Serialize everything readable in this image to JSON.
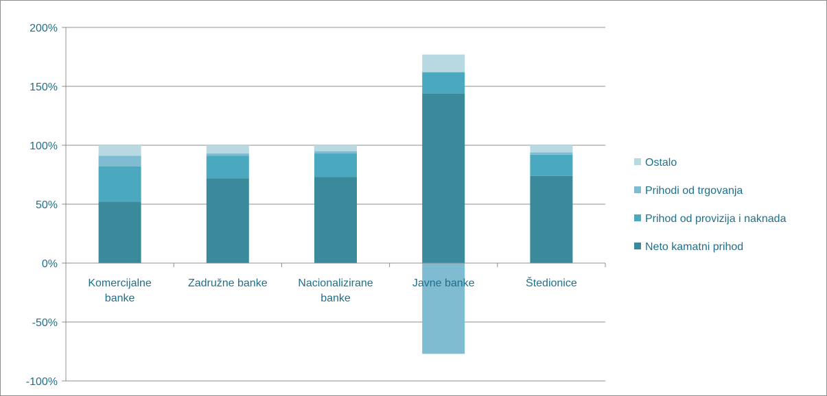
{
  "chart_data": {
    "type": "bar",
    "stacked": true,
    "title": "",
    "xlabel": "",
    "ylabel": "",
    "ylim": [
      -100,
      200
    ],
    "yticks": [
      -100,
      -50,
      0,
      50,
      100,
      150,
      200
    ],
    "ytick_labels": [
      "-100%",
      "-50%",
      "0%",
      "50%",
      "100%",
      "150%",
      "200%"
    ],
    "grid": true,
    "legend_position": "right",
    "categories": [
      [
        "Komercijalne",
        "banke"
      ],
      [
        "Zadružne banke"
      ],
      [
        "Nacionalizirane",
        "banke"
      ],
      [
        "Javne banke"
      ],
      [
        "Štedionice"
      ]
    ],
    "series": [
      {
        "name": "Neto kamatni prihod",
        "color": "#3a8a9c",
        "values": [
          52,
          72,
          73,
          144,
          74
        ]
      },
      {
        "name": "Prihod od provizija i naknada",
        "color": "#4aa8bf",
        "values": [
          30,
          19,
          20,
          18,
          18
        ]
      },
      {
        "name": "Prihodi od trgovanja",
        "color": "#7fbcd1",
        "values": [
          9,
          2,
          2,
          -77,
          2
        ]
      },
      {
        "name": "Ostalo",
        "color": "#b8d8e2",
        "values": [
          9,
          7,
          5,
          15,
          6
        ]
      }
    ],
    "legend_order": [
      "Ostalo",
      "Prihodi od trgovanja",
      "Prihod od provizija i naknada",
      "Neto kamatni prihod"
    ]
  }
}
